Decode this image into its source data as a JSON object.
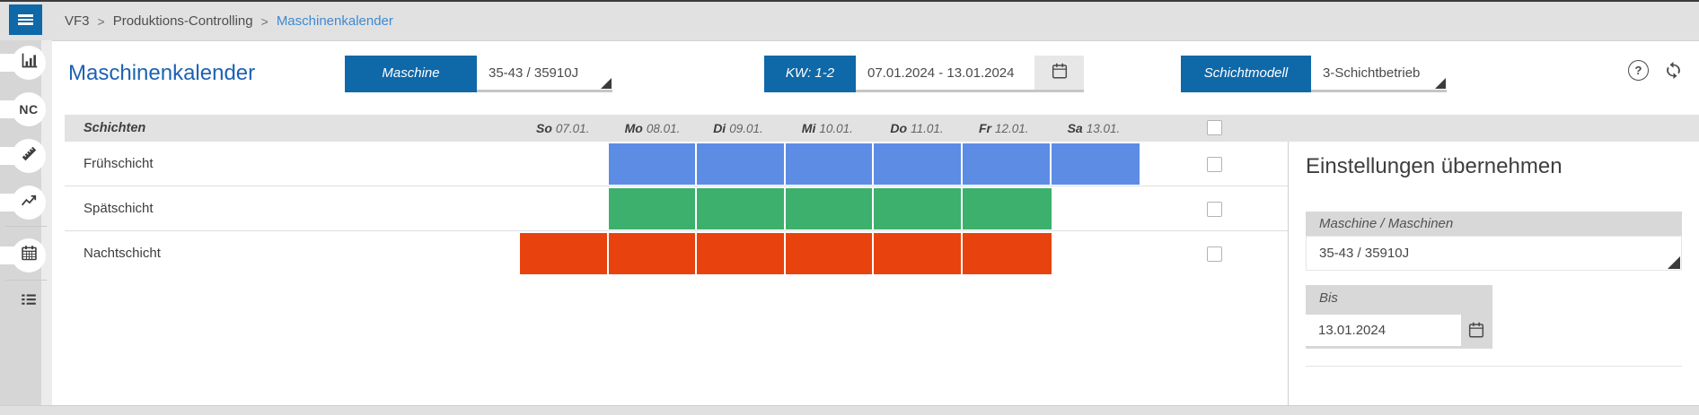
{
  "topbar": {
    "breadcrumb": [
      "VF3",
      "Produktions-Controlling",
      "Maschinenkalender"
    ]
  },
  "sidebar": {
    "nc_label": "NC"
  },
  "toolbar": {
    "title": "Maschinenkalender",
    "maschine": {
      "label": "Maschine",
      "value": "35-43 / 35910J"
    },
    "kw": {
      "label": "KW: 1-2",
      "value": "07.01.2024 - 13.01.2024"
    },
    "schichtmodell": {
      "label": "Schichtmodell",
      "value": "3-Schichtbetrieb"
    }
  },
  "grid": {
    "corner_label": "Schichten",
    "days": [
      {
        "abbr": "So",
        "date": "07.01."
      },
      {
        "abbr": "Mo",
        "date": "08.01."
      },
      {
        "abbr": "Di",
        "date": "09.01."
      },
      {
        "abbr": "Mi",
        "date": "10.01."
      },
      {
        "abbr": "Do",
        "date": "11.01."
      },
      {
        "abbr": "Fr",
        "date": "12.01."
      },
      {
        "abbr": "Sa",
        "date": "13.01."
      }
    ],
    "header_checkbox_checked": false,
    "shifts": [
      {
        "name": "Frühschicht",
        "color": "#5d8ce4",
        "start": "Mo",
        "end": "Sa",
        "checked": false
      },
      {
        "name": "Spätschicht",
        "color": "#3cb06c",
        "start": "Mo",
        "end": "Fr",
        "checked": false
      },
      {
        "name": "Nachtschicht",
        "color": "#e8430e",
        "start": "So",
        "end": "Fr",
        "checked": false
      }
    ]
  },
  "panel": {
    "title": "Einstellungen übernehmen",
    "machine_label": "Maschine / Maschinen",
    "machine_value": "35-43 / 35910J",
    "bis_label": "Bis",
    "bis_value": "13.01.2024"
  },
  "colors": {
    "accent_blue": "#0f68a8",
    "link_blue": "#3d8ad1",
    "title_blue": "#1d62b4",
    "bar_blue": "#5d8ce4",
    "bar_green": "#3cb06c",
    "bar_red": "#e8430e"
  }
}
